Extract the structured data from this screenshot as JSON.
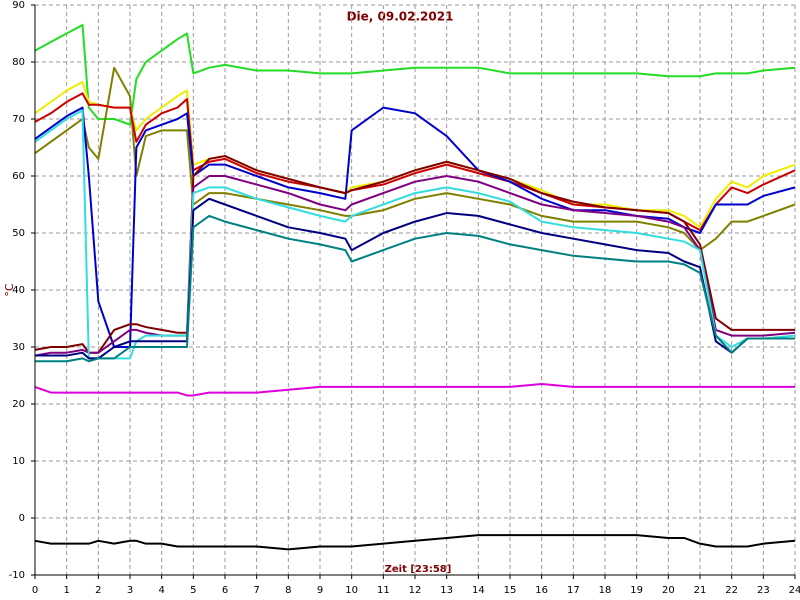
{
  "chart_data": {
    "type": "line",
    "title": "Die, 09.02.2021",
    "x_label": "Zeit [23:58]",
    "y_label": "°C",
    "grid": true,
    "xlim": [
      0,
      24
    ],
    "xticks": [
      0,
      1,
      2,
      3,
      4,
      5,
      6,
      7,
      8,
      9,
      10,
      11,
      12,
      13,
      14,
      15,
      16,
      17,
      18,
      19,
      20,
      21,
      22,
      23,
      24
    ],
    "ylim": [
      -10,
      90
    ],
    "yticks": [
      -10,
      0,
      10,
      20,
      30,
      40,
      50,
      60,
      70,
      80,
      90
    ],
    "x": [
      0,
      0.5,
      1,
      1.5,
      1.7,
      2,
      2.5,
      3,
      3.2,
      3.5,
      4,
      4.5,
      4.8,
      5,
      5.5,
      6,
      7,
      8,
      9,
      9.8,
      10,
      11,
      12,
      13,
      14,
      15,
      16,
      17,
      18,
      19,
      20,
      20.5,
      21,
      21.5,
      22,
      22.5,
      23,
      24
    ],
    "series": [
      {
        "color": "#22dd22",
        "values": [
          82,
          83.5,
          85,
          86.5,
          72,
          70,
          70,
          69,
          77,
          80,
          82,
          84,
          85,
          78,
          79,
          79.5,
          78.5,
          78.5,
          78,
          78,
          78,
          78.5,
          79,
          79,
          79,
          78,
          78,
          78,
          78,
          78,
          77.5,
          77.5,
          77.5,
          78,
          78,
          78,
          78.5,
          79
        ]
      },
      {
        "color": "#808000",
        "values": [
          64,
          66,
          68,
          70,
          65,
          63,
          79,
          74,
          60,
          67,
          68,
          68,
          68,
          55,
          57,
          57,
          56,
          55,
          54,
          53,
          53,
          54,
          56,
          57,
          56,
          55,
          53,
          52,
          52,
          52,
          51,
          50,
          47,
          49,
          52,
          52,
          53,
          55
        ]
      },
      {
        "color": "#eeee00",
        "values": [
          71,
          73,
          75,
          76.5,
          73,
          72.5,
          72,
          72,
          68,
          70,
          72,
          74,
          75,
          62,
          63,
          63.5,
          61,
          59.5,
          58,
          57,
          58,
          59,
          61,
          62.5,
          61,
          59.5,
          57.5,
          55,
          55,
          54,
          54,
          53,
          51,
          56,
          59,
          58,
          60,
          62
        ]
      },
      {
        "color": "#cc0000",
        "values": [
          69.5,
          71,
          73,
          74.5,
          72.5,
          72.5,
          72,
          72,
          66,
          69,
          71,
          72,
          73.5,
          61,
          62.5,
          63,
          60.5,
          59,
          58,
          57,
          57.5,
          58.5,
          60.5,
          62,
          60.5,
          59,
          57,
          55,
          54.5,
          54,
          53.5,
          52,
          50.5,
          55,
          58,
          57,
          58.5,
          61
        ]
      },
      {
        "color": "#0000cc",
        "values": [
          66.5,
          68.5,
          70.5,
          72,
          60,
          38,
          30,
          30,
          65,
          68,
          69,
          70,
          71,
          60,
          62,
          62,
          60,
          58,
          57,
          56,
          68,
          72,
          71,
          67,
          61,
          59,
          56,
          54,
          54,
          53,
          52.5,
          51,
          50,
          55,
          55,
          55,
          56.5,
          58
        ]
      },
      {
        "color": "#800000",
        "values": [
          29.5,
          30,
          30,
          30.5,
          29,
          29,
          33,
          34,
          34,
          33.5,
          33,
          32.5,
          32.5,
          60,
          63,
          63.5,
          61,
          59.5,
          58,
          57,
          57.5,
          59,
          61,
          62.5,
          61,
          59.5,
          57,
          55.5,
          54.5,
          54,
          53.5,
          52,
          48,
          35,
          33,
          33,
          33,
          33
        ]
      },
      {
        "color": "#800080",
        "values": [
          28.5,
          29,
          29,
          29.5,
          29,
          29,
          31,
          33,
          33,
          32.5,
          32,
          32,
          32,
          58,
          60,
          60,
          58.5,
          57,
          55,
          54,
          55,
          57,
          59,
          60,
          59,
          57,
          55,
          54,
          53.5,
          53,
          52,
          51,
          47,
          33,
          32,
          32,
          32,
          32.5
        ]
      },
      {
        "color": "#33dddd",
        "values": [
          66,
          68,
          70,
          71.5,
          28,
          28,
          28,
          28,
          31,
          32,
          32,
          32,
          32,
          57,
          58,
          58,
          56,
          54.5,
          53,
          52,
          53,
          55,
          57,
          58,
          57,
          55.5,
          52,
          51,
          50.5,
          50,
          49,
          48.5,
          47,
          32,
          30,
          31.5,
          31.5,
          32
        ]
      },
      {
        "color": "#000080",
        "values": [
          28.5,
          28.5,
          28.5,
          29,
          28,
          28,
          30,
          31,
          31,
          31,
          31,
          31,
          31,
          54,
          56,
          55,
          53,
          51,
          50,
          49,
          47,
          50,
          52,
          53.5,
          53,
          51.5,
          50,
          49,
          48,
          47,
          46.5,
          45,
          44,
          31,
          29,
          31.5,
          31.5,
          31.5
        ]
      },
      {
        "color": "#008080",
        "values": [
          27.5,
          27.5,
          27.5,
          28,
          27.5,
          28,
          28,
          30,
          30,
          30,
          30,
          30,
          30,
          51,
          53,
          52,
          50.5,
          49,
          48,
          47,
          45,
          47,
          49,
          50,
          49.5,
          48,
          47,
          46,
          45.5,
          45,
          45,
          44.5,
          43,
          32,
          29,
          31.5,
          31.5,
          31.5
        ]
      },
      {
        "color": "#dd00dd",
        "values": [
          23,
          22,
          22,
          22,
          22,
          22,
          22,
          22,
          22,
          22,
          22,
          22,
          21.5,
          21.5,
          22,
          22,
          22,
          22.5,
          23,
          23,
          23,
          23,
          23,
          23,
          23,
          23,
          23.5,
          23,
          23,
          23,
          23,
          23,
          23,
          23,
          23,
          23,
          23,
          23
        ]
      },
      {
        "color": "#000000",
        "values": [
          -4,
          -4.5,
          -4.5,
          -4.5,
          -4.5,
          -4,
          -4.5,
          -4,
          -4,
          -4.5,
          -4.5,
          -5,
          -5,
          -5,
          -5,
          -5,
          -5,
          -5.5,
          -5,
          -5,
          -5,
          -4.5,
          -4,
          -3.5,
          -3,
          -3,
          -3,
          -3,
          -3,
          -3,
          -3.5,
          -3.5,
          -4.5,
          -5,
          -5,
          -5,
          -4.5,
          -4
        ]
      }
    ]
  }
}
